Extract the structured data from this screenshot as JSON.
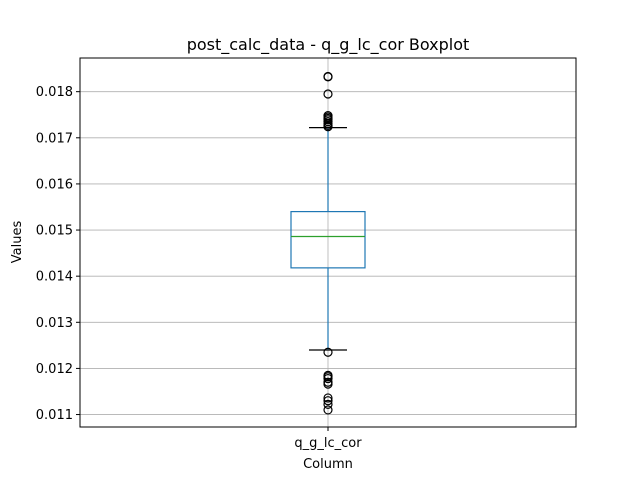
{
  "chart_data": {
    "type": "boxplot",
    "title": "post_calc_data - q_g_lc_cor Boxplot",
    "xlabel": "Column",
    "ylabel": "Values",
    "categories": [
      "q_g_lc_cor"
    ],
    "ylim": [
      0.01073,
      0.01873
    ],
    "yticks": [
      0.011,
      0.012,
      0.013,
      0.014,
      0.015,
      0.016,
      0.017,
      0.018
    ],
    "ytick_labels": [
      "0.011",
      "0.012",
      "0.013",
      "0.014",
      "0.015",
      "0.016",
      "0.017",
      "0.018"
    ],
    "grid": true,
    "box": {
      "q1": 0.01418,
      "median": 0.01486,
      "q3": 0.0154,
      "whisker_low": 0.0124,
      "whisker_high": 0.01722,
      "outliers": [
        0.01833,
        0.01832,
        0.01795,
        0.01748,
        0.01745,
        0.01742,
        0.01739,
        0.01735,
        0.01731,
        0.01727,
        0.01724,
        0.01235,
        0.01185,
        0.01182,
        0.01178,
        0.0117,
        0.01166,
        0.01136,
        0.0113,
        0.01122,
        0.0111
      ]
    },
    "colors": {
      "box": "#1f77b4",
      "median": "#2ca02c",
      "whisker_cap": "#000000",
      "outlier_edge": "#000000",
      "grid": "#b0b0b0"
    }
  }
}
